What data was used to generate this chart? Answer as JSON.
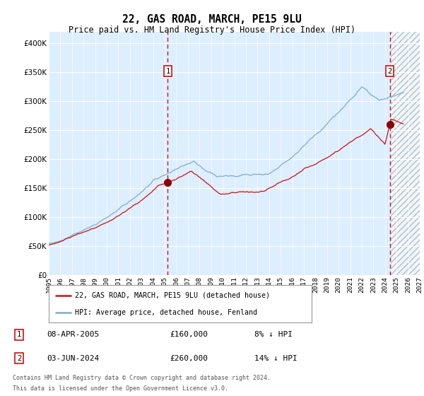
{
  "title": "22, GAS ROAD, MARCH, PE15 9LU",
  "subtitle": "Price paid vs. HM Land Registry's House Price Index (HPI)",
  "legend_line1": "22, GAS ROAD, MARCH, PE15 9LU (detached house)",
  "legend_line2": "HPI: Average price, detached house, Fenland",
  "annotation1_label": "1",
  "annotation1_date": "08-APR-2005",
  "annotation1_price": "£160,000",
  "annotation1_note": "8% ↓ HPI",
  "annotation2_label": "2",
  "annotation2_date": "03-JUN-2024",
  "annotation2_price": "£260,000",
  "annotation2_note": "14% ↓ HPI",
  "footer_line1": "Contains HM Land Registry data © Crown copyright and database right 2024.",
  "footer_line2": "This data is licensed under the Open Government Licence v3.0.",
  "hpi_color": "#7aadd4",
  "price_color": "#cc1111",
  "marker_color": "#8b0000",
  "plot_bg": "#ddeeff",
  "grid_color": "#ffffff",
  "vline_color": "#cc1111",
  "ylim": [
    0,
    420000
  ],
  "yticks": [
    0,
    50000,
    100000,
    150000,
    200000,
    250000,
    300000,
    350000,
    400000
  ],
  "start_year": 1995,
  "end_year": 2027,
  "sale1_year": 2005.27,
  "sale1_value": 160000,
  "sale2_year": 2024.42,
  "sale2_value": 260000
}
